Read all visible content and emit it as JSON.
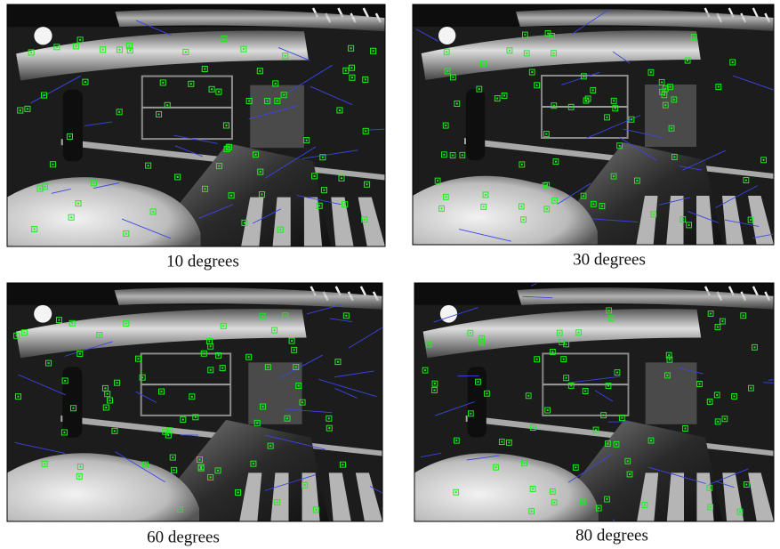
{
  "panels": [
    {
      "caption": "10 degrees"
    },
    {
      "caption": "30 degrees"
    },
    {
      "caption": "60 degrees"
    },
    {
      "caption": "80 degrees"
    }
  ]
}
